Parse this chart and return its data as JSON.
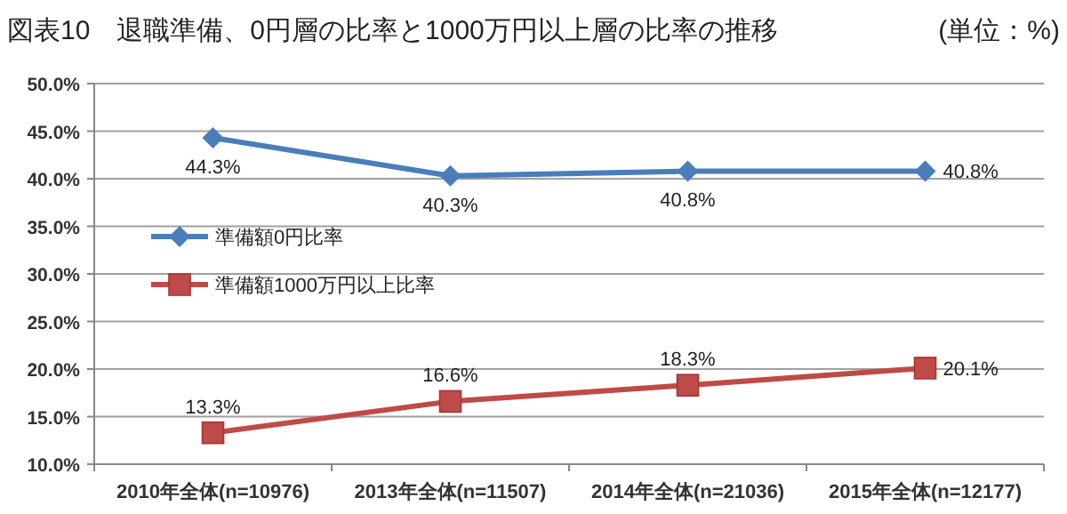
{
  "chart_data": {
    "type": "line",
    "title": "図表10　退職準備、0円層の比率と1000万円以上層の比率の推移",
    "subtitle": "(単位：%)",
    "categories": [
      "2010年全体(n=10976)",
      "2013年全体(n=11507)",
      "2014年全体(n=21036)",
      "2015年全体(n=12177)"
    ],
    "series": [
      {
        "name": "準備額0円比率",
        "color": "#4a7ebb",
        "marker": "diamond",
        "values": [
          44.3,
          40.3,
          40.8,
          40.8
        ],
        "value_labels": [
          "44.3%",
          "40.3%",
          "40.8%",
          "40.8%"
        ]
      },
      {
        "name": "準備額1000万円以上比率",
        "color": "#be4b48",
        "marker": "square",
        "values": [
          13.3,
          16.6,
          18.3,
          20.1
        ],
        "value_labels": [
          "13.3%",
          "16.6%",
          "18.3%",
          "20.1%"
        ]
      }
    ],
    "ylim": [
      10,
      50
    ],
    "yticks": [
      {
        "value": 10,
        "label": "10.0%"
      },
      {
        "value": 15,
        "label": "15.0%"
      },
      {
        "value": 20,
        "label": "20.0%"
      },
      {
        "value": 25,
        "label": "25.0%"
      },
      {
        "value": 30,
        "label": "30.0%"
      },
      {
        "value": 35,
        "label": "35.0%"
      },
      {
        "value": 40,
        "label": "40.0%"
      },
      {
        "value": 45,
        "label": "45.0%"
      },
      {
        "value": 50,
        "label": "50.0%"
      }
    ],
    "grid": "y",
    "legend": "left",
    "line_style": "solid"
  }
}
